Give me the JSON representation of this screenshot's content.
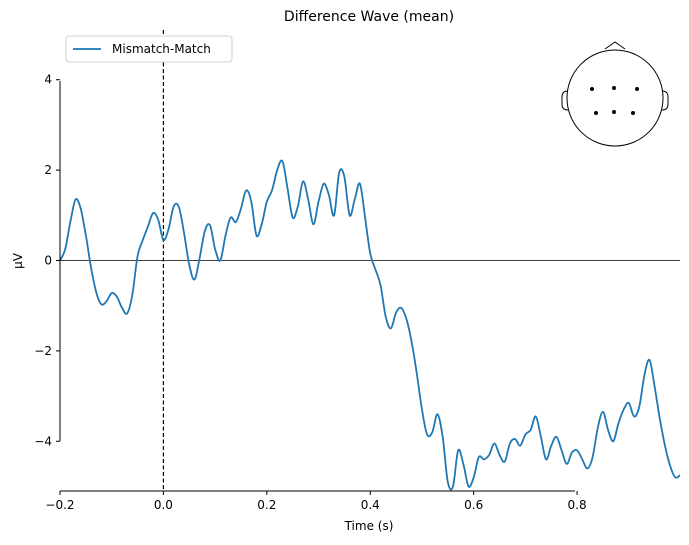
{
  "chart_data": {
    "type": "line",
    "title": "Difference Wave (mean)",
    "xlabel": "Time (s)",
    "ylabel": "µV",
    "xlim": [
      -0.2,
      0.999
    ],
    "ylim": [
      -5.1,
      5.1
    ],
    "x_ticks": [
      -0.2,
      0.0,
      0.2,
      0.4,
      0.6,
      0.8
    ],
    "x_tick_labels": [
      "−0.2",
      "0.0",
      "0.2",
      "0.4",
      "0.6",
      "0.8"
    ],
    "y_ticks": [
      -4,
      -2,
      0,
      2,
      4
    ],
    "y_tick_labels": [
      "−4",
      "−2",
      "0",
      "2",
      "4"
    ],
    "grid": false,
    "legend_position": "top-left",
    "zero_line": true,
    "event_marker_x": 0.0,
    "series": [
      {
        "name": "Mismatch-Match",
        "color": "#1f77b4",
        "points": [
          [
            -0.2,
            0.0
          ],
          [
            -0.19,
            0.25
          ],
          [
            -0.18,
            0.85
          ],
          [
            -0.17,
            1.35
          ],
          [
            -0.16,
            1.15
          ],
          [
            -0.15,
            0.55
          ],
          [
            -0.14,
            -0.15
          ],
          [
            -0.13,
            -0.7
          ],
          [
            -0.12,
            -0.97
          ],
          [
            -0.11,
            -0.9
          ],
          [
            -0.1,
            -0.72
          ],
          [
            -0.09,
            -0.8
          ],
          [
            -0.08,
            -1.05
          ],
          [
            -0.07,
            -1.17
          ],
          [
            -0.06,
            -0.75
          ],
          [
            -0.05,
            0.1
          ],
          [
            -0.04,
            0.45
          ],
          [
            -0.03,
            0.75
          ],
          [
            -0.02,
            1.05
          ],
          [
            -0.01,
            0.9
          ],
          [
            0.0,
            0.45
          ],
          [
            0.01,
            0.7
          ],
          [
            0.02,
            1.2
          ],
          [
            0.03,
            1.18
          ],
          [
            0.04,
            0.6
          ],
          [
            0.05,
            -0.1
          ],
          [
            0.06,
            -0.42
          ],
          [
            0.07,
            0.05
          ],
          [
            0.08,
            0.65
          ],
          [
            0.09,
            0.78
          ],
          [
            0.1,
            0.25
          ],
          [
            0.11,
            0.0
          ],
          [
            0.12,
            0.55
          ],
          [
            0.13,
            0.95
          ],
          [
            0.14,
            0.85
          ],
          [
            0.15,
            1.15
          ],
          [
            0.16,
            1.55
          ],
          [
            0.17,
            1.3
          ],
          [
            0.18,
            0.55
          ],
          [
            0.19,
            0.8
          ],
          [
            0.2,
            1.3
          ],
          [
            0.21,
            1.55
          ],
          [
            0.22,
            2.0
          ],
          [
            0.23,
            2.2
          ],
          [
            0.24,
            1.6
          ],
          [
            0.25,
            0.95
          ],
          [
            0.26,
            1.2
          ],
          [
            0.27,
            1.75
          ],
          [
            0.28,
            1.35
          ],
          [
            0.29,
            0.8
          ],
          [
            0.3,
            1.3
          ],
          [
            0.31,
            1.7
          ],
          [
            0.32,
            1.45
          ],
          [
            0.33,
            1.0
          ],
          [
            0.34,
            1.95
          ],
          [
            0.35,
            1.85
          ],
          [
            0.36,
            1.0
          ],
          [
            0.37,
            1.35
          ],
          [
            0.38,
            1.7
          ],
          [
            0.39,
            0.95
          ],
          [
            0.4,
            0.15
          ],
          [
            0.41,
            -0.2
          ],
          [
            0.42,
            -0.55
          ],
          [
            0.43,
            -1.25
          ],
          [
            0.44,
            -1.5
          ],
          [
            0.45,
            -1.15
          ],
          [
            0.46,
            -1.05
          ],
          [
            0.47,
            -1.3
          ],
          [
            0.48,
            -1.8
          ],
          [
            0.49,
            -2.5
          ],
          [
            0.5,
            -3.3
          ],
          [
            0.51,
            -3.85
          ],
          [
            0.52,
            -3.8
          ],
          [
            0.53,
            -3.4
          ],
          [
            0.54,
            -3.9
          ],
          [
            0.55,
            -4.9
          ],
          [
            0.56,
            -5.0
          ],
          [
            0.57,
            -4.2
          ],
          [
            0.58,
            -4.5
          ],
          [
            0.59,
            -5.0
          ],
          [
            0.6,
            -4.8
          ],
          [
            0.61,
            -4.35
          ],
          [
            0.62,
            -4.4
          ],
          [
            0.63,
            -4.3
          ],
          [
            0.64,
            -4.05
          ],
          [
            0.65,
            -4.3
          ],
          [
            0.66,
            -4.45
          ],
          [
            0.67,
            -4.05
          ],
          [
            0.68,
            -3.95
          ],
          [
            0.69,
            -4.1
          ],
          [
            0.7,
            -3.85
          ],
          [
            0.71,
            -3.75
          ],
          [
            0.72,
            -3.45
          ],
          [
            0.73,
            -3.9
          ],
          [
            0.74,
            -4.4
          ],
          [
            0.75,
            -4.1
          ],
          [
            0.76,
            -3.9
          ],
          [
            0.77,
            -4.2
          ],
          [
            0.78,
            -4.5
          ],
          [
            0.79,
            -4.25
          ],
          [
            0.8,
            -4.2
          ],
          [
            0.81,
            -4.4
          ],
          [
            0.82,
            -4.6
          ],
          [
            0.83,
            -4.35
          ],
          [
            0.84,
            -3.7
          ],
          [
            0.85,
            -3.35
          ],
          [
            0.86,
            -3.75
          ],
          [
            0.87,
            -4.0
          ],
          [
            0.88,
            -3.6
          ],
          [
            0.89,
            -3.3
          ],
          [
            0.9,
            -3.15
          ],
          [
            0.91,
            -3.45
          ],
          [
            0.92,
            -3.25
          ],
          [
            0.93,
            -2.55
          ],
          [
            0.94,
            -2.2
          ],
          [
            0.95,
            -2.8
          ],
          [
            0.96,
            -3.5
          ],
          [
            0.97,
            -4.1
          ],
          [
            0.98,
            -4.55
          ],
          [
            0.99,
            -4.8
          ],
          [
            0.999,
            -4.75
          ]
        ]
      }
    ],
    "sensor_inset": {
      "sensor_count": 6
    }
  }
}
